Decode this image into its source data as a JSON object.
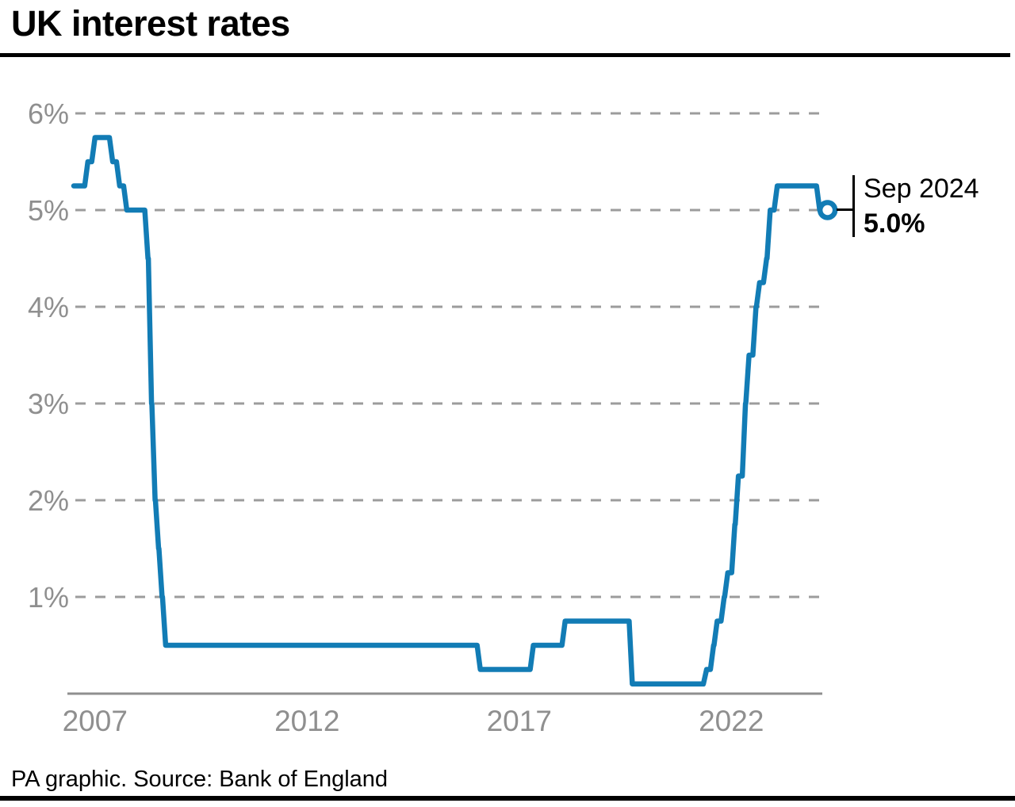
{
  "title": "UK interest rates",
  "footer": "PA graphic. Source: Bank of England",
  "annotation": {
    "date": "Sep 2024",
    "value": "5.0%"
  },
  "colors": {
    "line": "#127cb5",
    "grid": "#9c9c9c",
    "axis": "#8f8f8f",
    "tick_text": "#8f8f8f",
    "black": "#000000",
    "background": "#ffffff",
    "marker_fill": "#ffffff"
  },
  "chart_data": {
    "type": "line",
    "title": "UK interest rates",
    "xlabel": "",
    "ylabel": "",
    "unit": "%",
    "grid": "horizontal-dashed",
    "legend": "none",
    "ylim": [
      0,
      6
    ],
    "xlim_years": [
      2006.85,
      2024.95
    ],
    "y_tick_labels": [
      "6%",
      "5%",
      "4%",
      "3%",
      "2%",
      "1%"
    ],
    "x_tick_labels": [
      "2007",
      "2012",
      "2017",
      "2022"
    ],
    "step_transition_years": 0.075,
    "rate_changes": [
      {
        "date": "Jan 2007",
        "t": 2007.0,
        "rate": 5.25
      },
      {
        "date": "May 2007",
        "t": 2007.333,
        "rate": 5.5
      },
      {
        "date": "Jul 2007",
        "t": 2007.5,
        "rate": 5.75
      },
      {
        "date": "Dec 2007",
        "t": 2007.917,
        "rate": 5.5
      },
      {
        "date": "Feb 2008",
        "t": 2008.083,
        "rate": 5.25
      },
      {
        "date": "Apr 2008",
        "t": 2008.25,
        "rate": 5.0
      },
      {
        "date": "Oct 2008",
        "t": 2008.75,
        "rate": 4.5
      },
      {
        "date": "Nov 2008",
        "t": 2008.833,
        "rate": 3.0
      },
      {
        "date": "Dec 2008",
        "t": 2008.917,
        "rate": 2.0
      },
      {
        "date": "Jan 2009",
        "t": 2009.0,
        "rate": 1.5
      },
      {
        "date": "Feb 2009",
        "t": 2009.083,
        "rate": 1.0
      },
      {
        "date": "Mar 2009",
        "t": 2009.167,
        "rate": 0.5
      },
      {
        "date": "Aug 2016",
        "t": 2016.583,
        "rate": 0.25
      },
      {
        "date": "Nov 2017",
        "t": 2017.833,
        "rate": 0.5
      },
      {
        "date": "Aug 2018",
        "t": 2018.583,
        "rate": 0.75
      },
      {
        "date": "Mar 2020",
        "t": 2020.167,
        "rate": 0.1
      },
      {
        "date": "Dec 2021",
        "t": 2021.917,
        "rate": 0.25
      },
      {
        "date": "Feb 2022",
        "t": 2022.083,
        "rate": 0.5
      },
      {
        "date": "Mar 2022",
        "t": 2022.167,
        "rate": 0.75
      },
      {
        "date": "May 2022",
        "t": 2022.333,
        "rate": 1.0
      },
      {
        "date": "Jun 2022",
        "t": 2022.417,
        "rate": 1.25
      },
      {
        "date": "Aug 2022",
        "t": 2022.583,
        "rate": 1.75
      },
      {
        "date": "Sep 2022",
        "t": 2022.667,
        "rate": 2.25
      },
      {
        "date": "Nov 2022",
        "t": 2022.833,
        "rate": 3.0
      },
      {
        "date": "Dec 2022",
        "t": 2022.917,
        "rate": 3.5
      },
      {
        "date": "Feb 2023",
        "t": 2023.083,
        "rate": 4.0
      },
      {
        "date": "Mar 2023",
        "t": 2023.167,
        "rate": 4.25
      },
      {
        "date": "May 2023",
        "t": 2023.333,
        "rate": 4.5
      },
      {
        "date": "Jun 2023",
        "t": 2023.417,
        "rate": 5.0
      },
      {
        "date": "Aug 2023",
        "t": 2023.583,
        "rate": 5.25
      },
      {
        "date": "Aug 2024",
        "t": 2024.583,
        "rate": 5.0
      }
    ],
    "end_point": {
      "date": "Sep 2024",
      "t": 2024.75,
      "rate": 5.0
    },
    "annotation": {
      "label": "Sep 2024",
      "value": "5.0%",
      "at": {
        "t": 2024.75,
        "rate": 5.0
      }
    }
  }
}
